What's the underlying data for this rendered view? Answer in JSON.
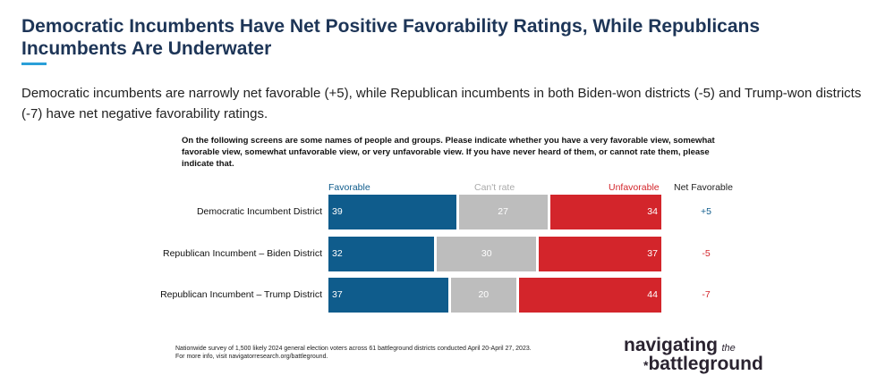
{
  "title": "Democratic Incumbents Have Net Positive Favorability Ratings, While Republicans Incumbents Are Underwater",
  "subtitle": "Democratic incumbents are narrowly net favorable (+5), while Republican incumbents in both Biden-won districts (-5) and Trump-won districts (-7) have net negative favorability ratings.",
  "question": "On the following screens are some names of people and groups. Please indicate whether you have a very favorable view, somewhat favorable view, somewhat unfavorable view, or very unfavorable view. If you have never heard of them, or cannot rate them, please indicate that.",
  "footnote": [
    "Nationwide survey of 1,500 likely 2024 general election voters across 61 battleground districts conducted April 20-April 27, 2023.",
    "For more info, visit navigatorresearch.org/battleground."
  ],
  "logo": {
    "line1": "navigating",
    "the": "the",
    "star": "*",
    "line2": "battleground"
  },
  "colors": {
    "favorable": "#0f5c8c",
    "cant_rate": "#bdbdbd",
    "unfavorable": "#d3252b",
    "title": "#1d3557"
  },
  "chart_data": {
    "type": "bar",
    "stacked": true,
    "orientation": "horizontal",
    "categories": [
      "Democratic Incumbent District",
      "Republican Incumbent – Biden District",
      "Republican Incumbent – Trump District"
    ],
    "series": [
      {
        "name": "Favorable",
        "values": [
          39,
          32,
          37
        ]
      },
      {
        "name": "Can't rate",
        "values": [
          27,
          30,
          20
        ]
      },
      {
        "name": "Unfavorable",
        "values": [
          34,
          37,
          44
        ]
      }
    ],
    "net_label": "Net Favorable",
    "net": [
      "+5",
      "-5",
      "-7"
    ]
  }
}
